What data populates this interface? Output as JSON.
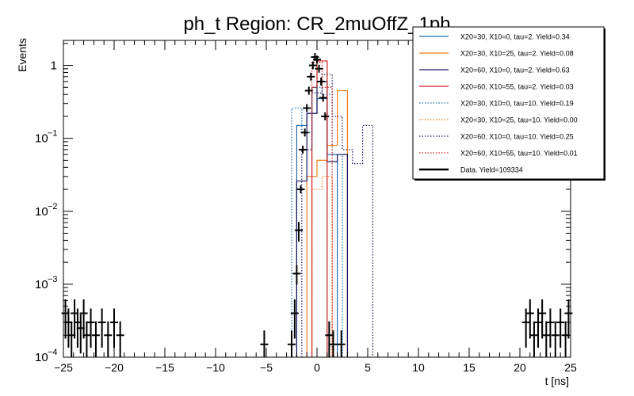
{
  "chart_data": {
    "type": "histogram",
    "title": "ph_t Region: CR_2muOffZ_1ph",
    "xlabel": "t [ns]",
    "ylabel": "Events",
    "xlim": [
      -25,
      25
    ],
    "ylim": [
      0.0001,
      2.2
    ],
    "yscale": "log",
    "x_ticks": [
      -25,
      -20,
      -15,
      -10,
      -5,
      0,
      5,
      10,
      15,
      20,
      25
    ],
    "x_tick_labels": [
      "−25",
      "−20",
      "−15",
      "−10",
      "−5",
      "0",
      "5",
      "10",
      "15",
      "20",
      "25"
    ],
    "y_ticks": [
      {
        "value": 0.0001,
        "base": "10",
        "exp": "−4",
        "plain": ""
      },
      {
        "value": 0.001,
        "base": "10",
        "exp": "−3",
        "plain": ""
      },
      {
        "value": 0.01,
        "base": "10",
        "exp": "−2",
        "plain": ""
      },
      {
        "value": 0.1,
        "base": "10",
        "exp": "−1",
        "plain": ""
      },
      {
        "value": 1,
        "base": "",
        "exp": "",
        "plain": "1"
      }
    ],
    "series": [
      {
        "name": "X20=30, X10=0, tau=2. Yield=0.34",
        "color": "#1f6cb0",
        "style": "solid",
        "edges": [
          -2.0,
          -1.0,
          0.0,
          1.0,
          2.0
        ],
        "values": [
          0.15,
          0.22,
          0.35,
          0.06
        ]
      },
      {
        "name": "X20=30, X10=25, tau=2. Yield=0.08",
        "color": "#f07e1f",
        "style": "solid",
        "edges": [
          -1.0,
          0.0,
          1.0,
          2.0,
          3.0
        ],
        "values": [
          0.03,
          0.05,
          0.08,
          0.45
        ]
      },
      {
        "name": "X20=60, X10=0, tau=2. Yield=0.63",
        "color": "#16165e",
        "style": "solid",
        "edges": [
          -2.0,
          -1.0,
          0.0,
          1.0,
          2.0,
          3.0
        ],
        "values": [
          0.026,
          0.22,
          0.6,
          0.048,
          0.06
        ]
      },
      {
        "name": "X20=60, X10=55, tau=2. Yield=0.03",
        "color": "#cc1f1f",
        "style": "solid",
        "edges": [
          -0.5,
          0.0,
          1.0
        ],
        "values": [
          0.5,
          1.15
        ]
      },
      {
        "name": "X20=30, X10=0, tau=10. Yield=0.19",
        "color": "#1f6cb0",
        "style": "dotted",
        "edges": [
          -2.5,
          -1.5,
          -0.5,
          0.5,
          1.5,
          2.5
        ],
        "values": [
          0.26,
          0.12,
          0.5,
          0.4,
          0.06
        ]
      },
      {
        "name": "X20=30, X10=25, tau=10. Yield=0.00",
        "color": "#f07e1f",
        "style": "dotted",
        "edges": [
          -0.5,
          0.5,
          1.5
        ],
        "values": [
          0.02,
          0.03
        ]
      },
      {
        "name": "X20=60, X10=0, tau=10. Yield=0.25",
        "color": "#16165e",
        "style": "dotted",
        "edges": [
          -1.5,
          -0.5,
          0.5,
          1.5,
          2.5,
          3.5,
          4.5,
          5.5
        ],
        "values": [
          0.07,
          0.42,
          0.75,
          0.2,
          0.07,
          0.045,
          0.15
        ]
      },
      {
        "name": "X20=60, X10=55, tau=10. Yield=0.01",
        "color": "#cc1f1f",
        "style": "dotted",
        "edges": [
          -0.5,
          0.5,
          1.5
        ],
        "values": [
          1.1,
          0.5
        ]
      },
      {
        "name": "Data. Yield=109334",
        "color": "#000000",
        "style": "points",
        "points": [
          [
            -24.8,
            0.0004
          ],
          [
            -24.5,
            0.0003
          ],
          [
            -24.2,
            0.0002
          ],
          [
            -23.9,
            0.0004
          ],
          [
            -23.6,
            0.0003
          ],
          [
            -23.3,
            0.00025
          ],
          [
            -23.0,
            0.0004
          ],
          [
            -22.7,
            0.0002
          ],
          [
            -22.3,
            0.0003
          ],
          [
            -21.8,
            0.0002
          ],
          [
            -21.2,
            0.0003
          ],
          [
            -20.6,
            0.0002
          ],
          [
            -20.0,
            0.0003
          ],
          [
            -19.4,
            0.0002
          ],
          [
            -5.2,
            0.00015
          ],
          [
            -2.5,
            0.00015
          ],
          [
            -2.2,
            0.0004
          ],
          [
            -2.0,
            0.0014
          ],
          [
            -1.8,
            0.0055
          ],
          [
            -1.6,
            0.02
          ],
          [
            -1.4,
            0.07
          ],
          [
            -1.2,
            0.12
          ],
          [
            -1.0,
            0.26
          ],
          [
            -0.8,
            0.45
          ],
          [
            -0.6,
            0.7
          ],
          [
            -0.4,
            1.0
          ],
          [
            -0.2,
            1.3
          ],
          [
            0.0,
            1.2
          ],
          [
            0.2,
            0.9
          ],
          [
            0.4,
            0.6
          ],
          [
            0.6,
            0.36
          ],
          [
            0.8,
            0.2
          ],
          [
            1.2,
            0.0002
          ],
          [
            1.6,
            0.00015
          ],
          [
            2.4,
            0.00015
          ],
          [
            20.6,
            0.0003
          ],
          [
            21.0,
            0.0004
          ],
          [
            21.4,
            0.0002
          ],
          [
            21.8,
            0.0003
          ],
          [
            22.2,
            0.0004
          ],
          [
            22.6,
            0.0002
          ],
          [
            23.0,
            0.0003
          ],
          [
            23.5,
            0.0002
          ],
          [
            24.0,
            0.0003
          ],
          [
            24.5,
            0.0002
          ],
          [
            24.8,
            0.0004
          ]
        ]
      }
    ]
  }
}
